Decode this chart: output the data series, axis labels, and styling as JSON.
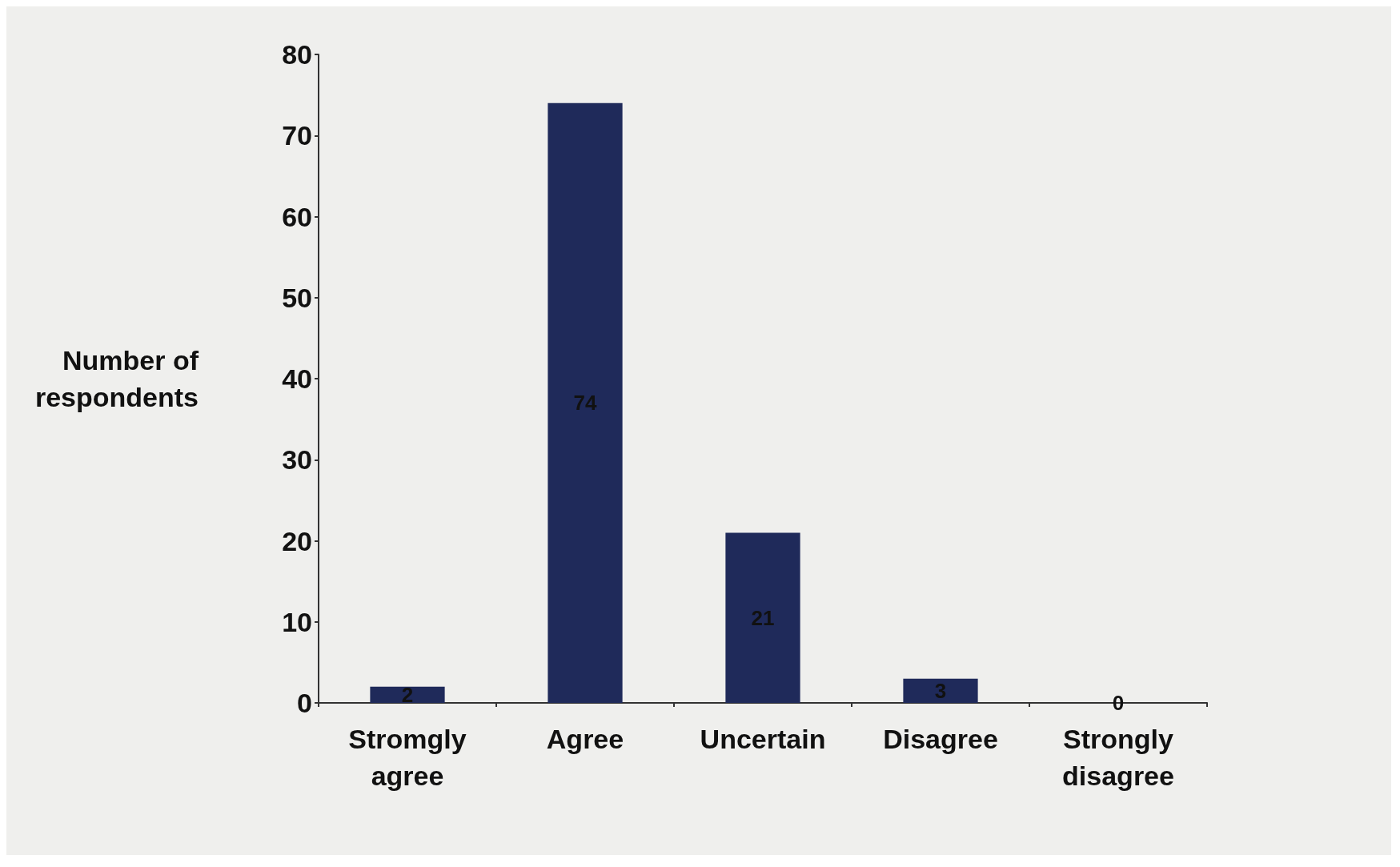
{
  "chart_data": {
    "type": "bar",
    "ylabel": "Number of\nrespondents",
    "categories": [
      "Stromgly\nagree",
      "Agree",
      "Uncertain",
      "Disagree",
      "Strongly\ndisagree"
    ],
    "values": [
      2,
      74,
      21,
      3,
      0
    ],
    "color": "#1f2a5a",
    "ylim": [
      0,
      80
    ],
    "yticks": [
      0,
      10,
      20,
      30,
      40,
      50,
      60,
      70,
      80
    ],
    "grid": false,
    "data_labels": true
  }
}
